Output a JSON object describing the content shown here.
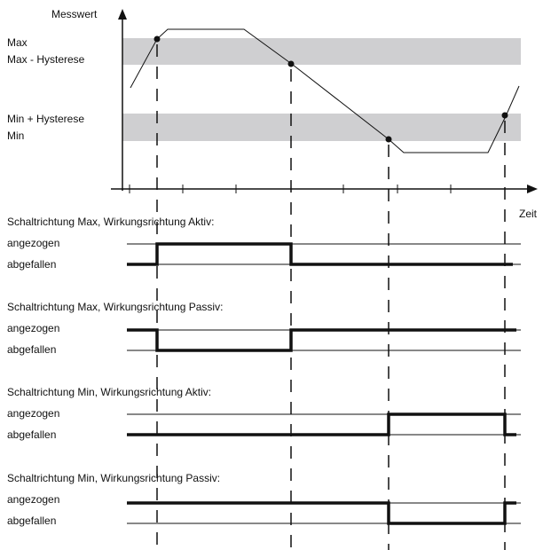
{
  "axes": {
    "y_label": "Messwert",
    "x_label": "Zeit"
  },
  "levels": {
    "max": "Max",
    "max_minus_hysteresis": "Max - Hysterese",
    "min_plus_hysteresis": "Min + Hysterese",
    "min": "Min"
  },
  "state_labels": {
    "energized": "angezogen",
    "de_energized": "abgefallen"
  },
  "panels": [
    {
      "title": "Schaltrichtung Max, Wirkungsrichtung Aktiv:",
      "energized": "angezogen",
      "de_energized": "abgefallen"
    },
    {
      "title": "Schaltrichtung Max, Wirkungsrichtung Passiv:",
      "energized": "angezogen",
      "de_energized": "abgefallen"
    },
    {
      "title": "Schaltrichtung Min, Wirkungsrichtung Aktiv:",
      "energized": "angezogen",
      "de_energized": "abgefallen"
    },
    {
      "title": "Schaltrichtung Min, Wirkungsrichtung Passiv:",
      "energized": "angezogen",
      "de_energized": "abgefallen"
    }
  ],
  "colors": {
    "band": "#cfcfd1",
    "line": "#111111"
  }
}
